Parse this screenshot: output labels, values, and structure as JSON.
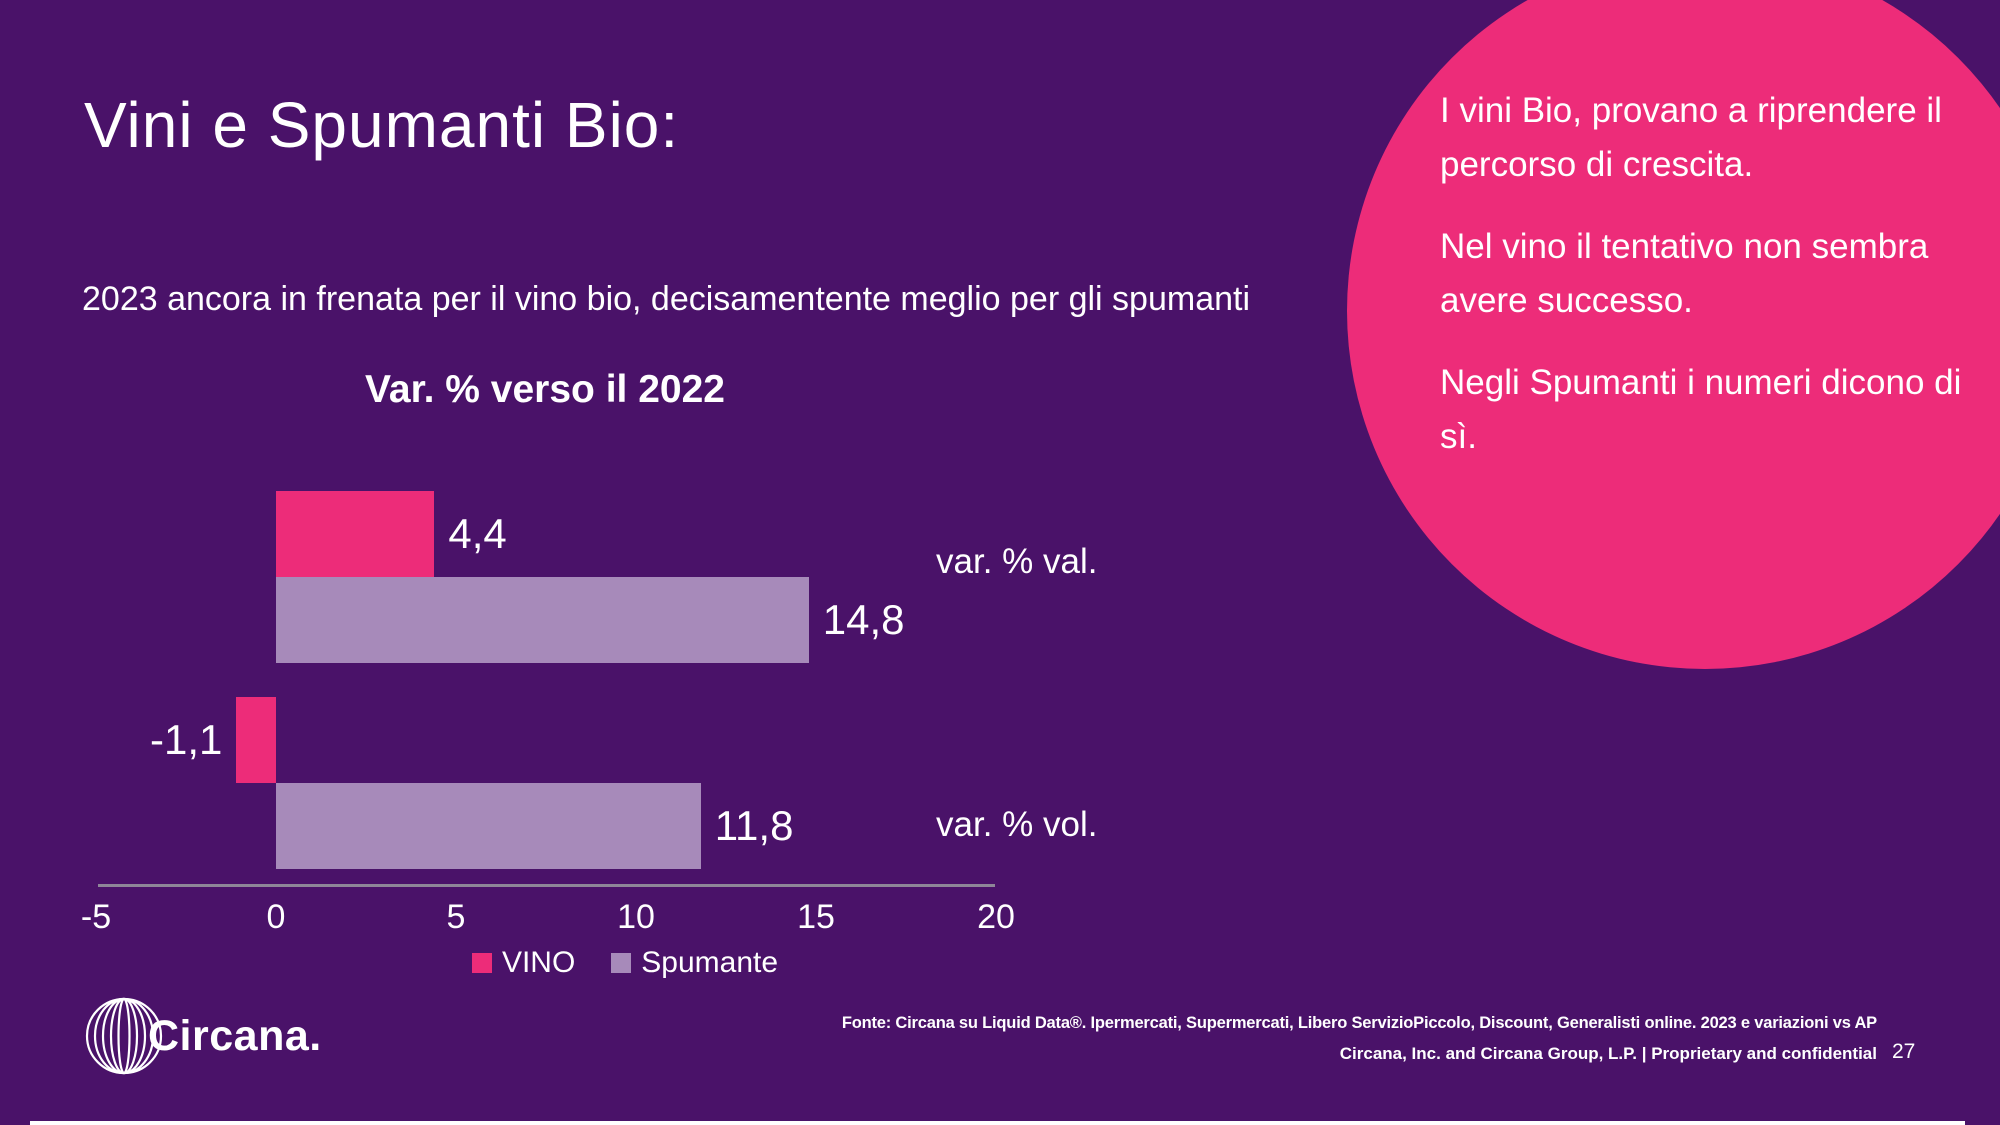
{
  "slide": {
    "title": "Vini e Spumanti Bio:",
    "subtitle": "2023 ancora in frenata per il vino bio, decisamentente meglio per gli spumanti",
    "page_number": "27"
  },
  "callout": {
    "bg_color": "#ED2C79",
    "paragraphs": [
      "I vini Bio, provano a riprendere il\npercorso di crescita.",
      "Nel vino il tentativo non sembra\navere successo.",
      "Negli Spumanti i numeri dicono di\nsì."
    ]
  },
  "chart_data": {
    "type": "bar",
    "orientation": "horizontal",
    "title": "Var. % verso il 2022",
    "categories": [
      "var. % val.",
      "var. % vol."
    ],
    "series": [
      {
        "name": "VINO",
        "color": "#ED2C79",
        "values": [
          4.4,
          -1.1
        ],
        "labels": [
          "4,4",
          "-1,1"
        ]
      },
      {
        "name": "Spumante",
        "color": "#A78ABA",
        "values": [
          14.8,
          11.8
        ],
        "labels": [
          "14,8",
          "11,8"
        ]
      }
    ],
    "x_ticks": [
      -5,
      0,
      5,
      10,
      15,
      20
    ],
    "xlim": [
      -5,
      20
    ],
    "grid": false,
    "legend_position": "bottom"
  },
  "footer": {
    "logo_text": "Circana.",
    "source_line": "Fonte: Circana su Liquid Data®.  Ipermercati, Supermercati, Libero ServizioPiccolo, Discount, Generalisti online. 2023 e variazioni vs AP",
    "confidential_line": "Circana, Inc. and Circana Group, L.P. |  Proprietary and confidential"
  },
  "colors": {
    "background": "#4A1269",
    "vino": "#ED2C79",
    "spumante": "#A78ABA",
    "axis": "#8E8698",
    "text": "#FFFFFF"
  }
}
